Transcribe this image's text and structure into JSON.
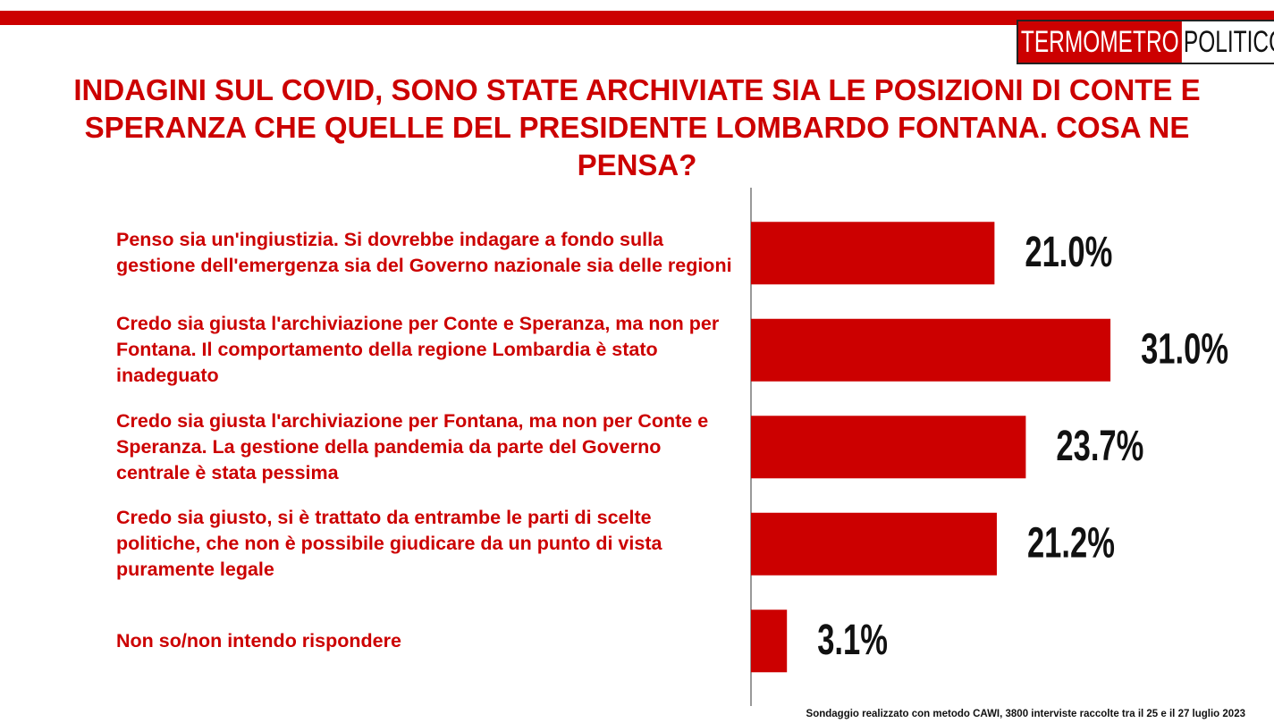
{
  "chart_data": {
    "type": "bar",
    "orientation": "horizontal",
    "brand": [
      "TERMOMETRO",
      "POLITICO"
    ],
    "title": "INDAGINI SUL COVID, SONO STATE ARCHIVIATE SIA LE POSIZIONI DI CONTE E SPERANZA CHE QUELLE DEL PRESIDENTE LOMBARDO FONTANA. COSA NE PENSA?",
    "categories": [
      "Penso sia un'ingiustizia. Si dovrebbe indagare a fondo sulla gestione dell'emergenza sia del Governo nazionale sia delle regioni",
      "Credo sia giusta l'archiviazione per Conte e Speranza, ma non per Fontana. Il comportamento della regione Lombardia è stato inadeguato",
      "Credo sia giusta l'archiviazione per Fontana, ma non per Conte e Speranza. La gestione della pandemia da parte del Governo centrale è stata pessima",
      "Credo sia giusto, si è trattato da entrambe le parti di scelte politiche, che non è possibile giudicare da un punto di vista puramente legale",
      "Non so/non intendo rispondere"
    ],
    "values": [
      21.0,
      31.0,
      23.7,
      21.2,
      3.1
    ],
    "value_labels": [
      "21.0%",
      "31.0%",
      "23.7%",
      "21.2%",
      "3.1%"
    ],
    "color": "#cc0000",
    "note": "Sondaggio realizzato con metodo CAWI, 3800 interviste raccolte tra il 25 e il 27 luglio 2023"
  }
}
